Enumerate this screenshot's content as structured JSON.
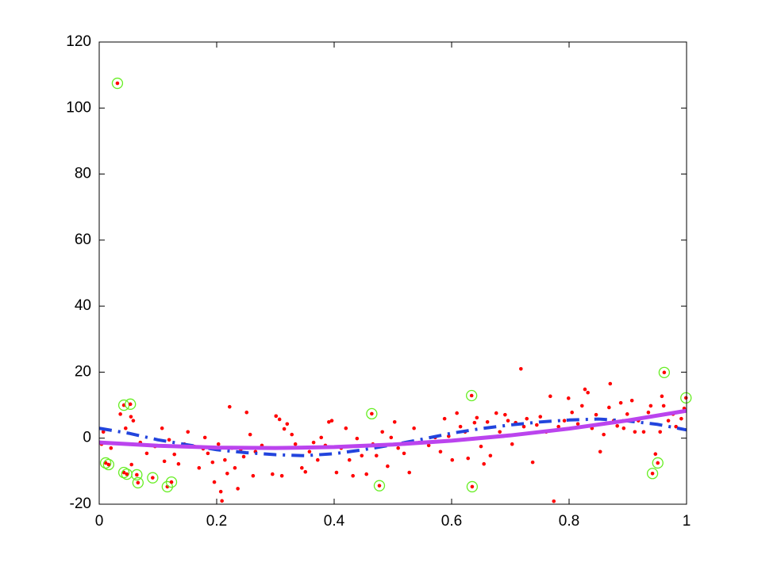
{
  "chart_data": {
    "type": "scatter",
    "xlim": [
      0,
      1
    ],
    "ylim": [
      -20,
      120
    ],
    "xticks": [
      0,
      0.2,
      0.4,
      0.6,
      0.8,
      1
    ],
    "yticks": [
      -20,
      0,
      20,
      40,
      60,
      80,
      100,
      120
    ],
    "grid": false,
    "series": [
      {
        "type": "scatter",
        "color": "#ff0000",
        "x": [
          0.007,
          0.004,
          0.02,
          0.036,
          0.045,
          0.054,
          0.055,
          0.058,
          0.07,
          0.081,
          0.095,
          0.107,
          0.111,
          0.119,
          0.128,
          0.135,
          0.145,
          0.151,
          0.162,
          0.17,
          0.177,
          0.18,
          0.185,
          0.193,
          0.196,
          0.203,
          0.207,
          0.209,
          0.214,
          0.218,
          0.222,
          0.226,
          0.231,
          0.236,
          0.241,
          0.246,
          0.251,
          0.257,
          0.262,
          0.266,
          0.277,
          0.284,
          0.295,
          0.301,
          0.307,
          0.311,
          0.315,
          0.32,
          0.328,
          0.334,
          0.345,
          0.351,
          0.358,
          0.365,
          0.372,
          0.378,
          0.385,
          0.391,
          0.396,
          0.404,
          0.412,
          0.42,
          0.426,
          0.432,
          0.439,
          0.447,
          0.455,
          0.466,
          0.472,
          0.482,
          0.491,
          0.497,
          0.503,
          0.509,
          0.519,
          0.528,
          0.536,
          0.545,
          0.561,
          0.572,
          0.581,
          0.588,
          0.595,
          0.601,
          0.609,
          0.615,
          0.623,
          0.628,
          0.639,
          0.643,
          0.65,
          0.655,
          0.661,
          0.666,
          0.676,
          0.682,
          0.691,
          0.696,
          0.703,
          0.709,
          0.718,
          0.723,
          0.728,
          0.738,
          0.745,
          0.751,
          0.761,
          0.768,
          0.774,
          0.782,
          0.792,
          0.799,
          0.805,
          0.815,
          0.822,
          0.827,
          0.832,
          0.839,
          0.846,
          0.853,
          0.859,
          0.868,
          0.87,
          0.876,
          0.882,
          0.888,
          0.893,
          0.899,
          0.907,
          0.912,
          0.918,
          0.927,
          0.935,
          0.939,
          0.947,
          0.955,
          0.958,
          0.961,
          0.969,
          0.977,
          0.982,
          0.991,
          0.996
        ],
        "values": [
          1.9,
          -1.8,
          -3,
          7.3,
          3,
          6.5,
          -8,
          5.3,
          -1.3,
          -4.6,
          -2.5,
          3,
          -7,
          -0.5,
          -4.9,
          -7.8,
          -1.8,
          1.9,
          -2.5,
          -9,
          -3.2,
          0.2,
          -4.6,
          -7.3,
          -13.3,
          -1.8,
          -16.2,
          -19,
          -6.6,
          -10.7,
          9.5,
          -3,
          -9,
          -15.3,
          -3.4,
          -5.6,
          7.8,
          1.1,
          -11.4,
          -4.1,
          -2.2,
          -3,
          -10.9,
          6.7,
          5.7,
          -11.4,
          2.8,
          4.3,
          1.1,
          -1.8,
          -9,
          -10.2,
          -4.1,
          -1.3,
          -6.6,
          0.2,
          -2.2,
          4.9,
          5.3,
          -10.4,
          -3,
          3,
          -6.6,
          -11.4,
          -0.1,
          -5.3,
          -10.9,
          -1.8,
          -5.3,
          1.9,
          -8.5,
          0.2,
          4.9,
          -3,
          -4.6,
          -10.4,
          3,
          -1.3,
          -2.2,
          0.2,
          -4.1,
          5.9,
          0.6,
          -6.6,
          7.6,
          3.5,
          1.9,
          -6.1,
          4.7,
          6.2,
          -2.5,
          -7.8,
          4.9,
          -5.3,
          7.6,
          1.9,
          7.1,
          5.3,
          -1.8,
          4.7,
          21,
          3.5,
          5.9,
          -7.3,
          4,
          6.5,
          1.9,
          12.7,
          -19.1,
          3.5,
          5.3,
          12.1,
          7.8,
          4.3,
          9.8,
          14.8,
          13.8,
          3,
          7.1,
          -4.1,
          1.1,
          9.3,
          16.5,
          5.3,
          3.7,
          10.7,
          3,
          7.3,
          11.4,
          1.9,
          5.3,
          1.9,
          7.8,
          9.8,
          -4.8,
          1.9,
          12.7,
          9.8,
          5.3,
          7.3,
          3.5,
          5.9,
          9
        ]
      },
      {
        "type": "scatter",
        "color": "#ff0000",
        "ring_color": "#66ee22",
        "x": [
          0.031,
          0.011,
          0.016,
          0.042,
          0.053,
          0.042,
          0.047,
          0.064,
          0.066,
          0.091,
          0.116,
          0.123,
          0.464,
          0.477,
          0.634,
          0.635,
          0.962,
          0.999,
          0.942,
          0.951
        ],
        "values": [
          107.5,
          -7.5,
          -8,
          10,
          10.3,
          -10.4,
          -10.9,
          -11.1,
          -13.5,
          -12,
          -14.7,
          -13.3,
          7.4,
          -14.4,
          12.9,
          -14.7,
          19.9,
          12.2,
          -10.7,
          -7.5
        ]
      },
      {
        "type": "line",
        "color": "#2244dd",
        "dash": "16 8 3 8",
        "width": 4,
        "x": [
          0,
          0.05,
          0.1,
          0.15,
          0.2,
          0.25,
          0.3,
          0.35,
          0.4,
          0.45,
          0.5,
          0.55,
          0.6,
          0.65,
          0.7,
          0.75,
          0.8,
          0.85,
          0.9,
          0.95,
          1
        ],
        "values": [
          3,
          1.5,
          -0.5,
          -2,
          -3.5,
          -4.4,
          -5,
          -5.3,
          -4.7,
          -3.5,
          -2,
          -0.3,
          1.5,
          2.9,
          4,
          4.9,
          5.5,
          5.8,
          5.2,
          4.2,
          2.5
        ]
      },
      {
        "type": "line",
        "color": "#bb44ee",
        "width": 5,
        "x": [
          0,
          0.1,
          0.2,
          0.3,
          0.4,
          0.5,
          0.6,
          0.7,
          0.8,
          0.9,
          1
        ],
        "values": [
          -1.29,
          -2.29,
          -2.86,
          -2.99,
          -2.69,
          -1.94,
          -0.77,
          0.85,
          2.89,
          5.38,
          8.3
        ]
      }
    ]
  }
}
